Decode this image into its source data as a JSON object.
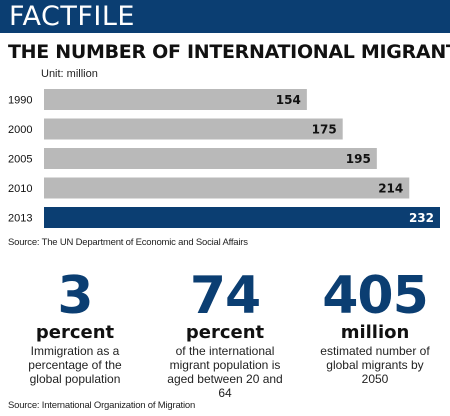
{
  "header": {
    "title": "FACTFILE"
  },
  "colors": {
    "header_bg": "#0b3e72",
    "bar_gray": "#b9b9b9",
    "bar_highlight": "#0b3e72",
    "stat_number": "#0b3e72"
  },
  "chart_data": {
    "type": "bar",
    "orientation": "horizontal",
    "title": "THE NUMBER OF INTERNATIONAL MIGRANTS",
    "unit_label": "Unit: million",
    "categories": [
      "1990",
      "2000",
      "2005",
      "2010",
      "2013"
    ],
    "values": [
      154,
      175,
      195,
      214,
      232
    ],
    "highlight_category": "2013",
    "xlim": [
      0,
      232
    ],
    "grid": false,
    "source": "Source: The UN Department of Economic and Social Affairs"
  },
  "stats": [
    {
      "number": "3",
      "unit": "percent",
      "description": "Immigration as a percentage of the global population"
    },
    {
      "number": "74",
      "unit": "percent",
      "description": "of the international migrant population is aged between 20 and 64"
    },
    {
      "number": "405",
      "unit": "million",
      "description": "estimated number of global migrants by 2050"
    }
  ],
  "footer": {
    "source": "Source: International Organization of Migration"
  }
}
